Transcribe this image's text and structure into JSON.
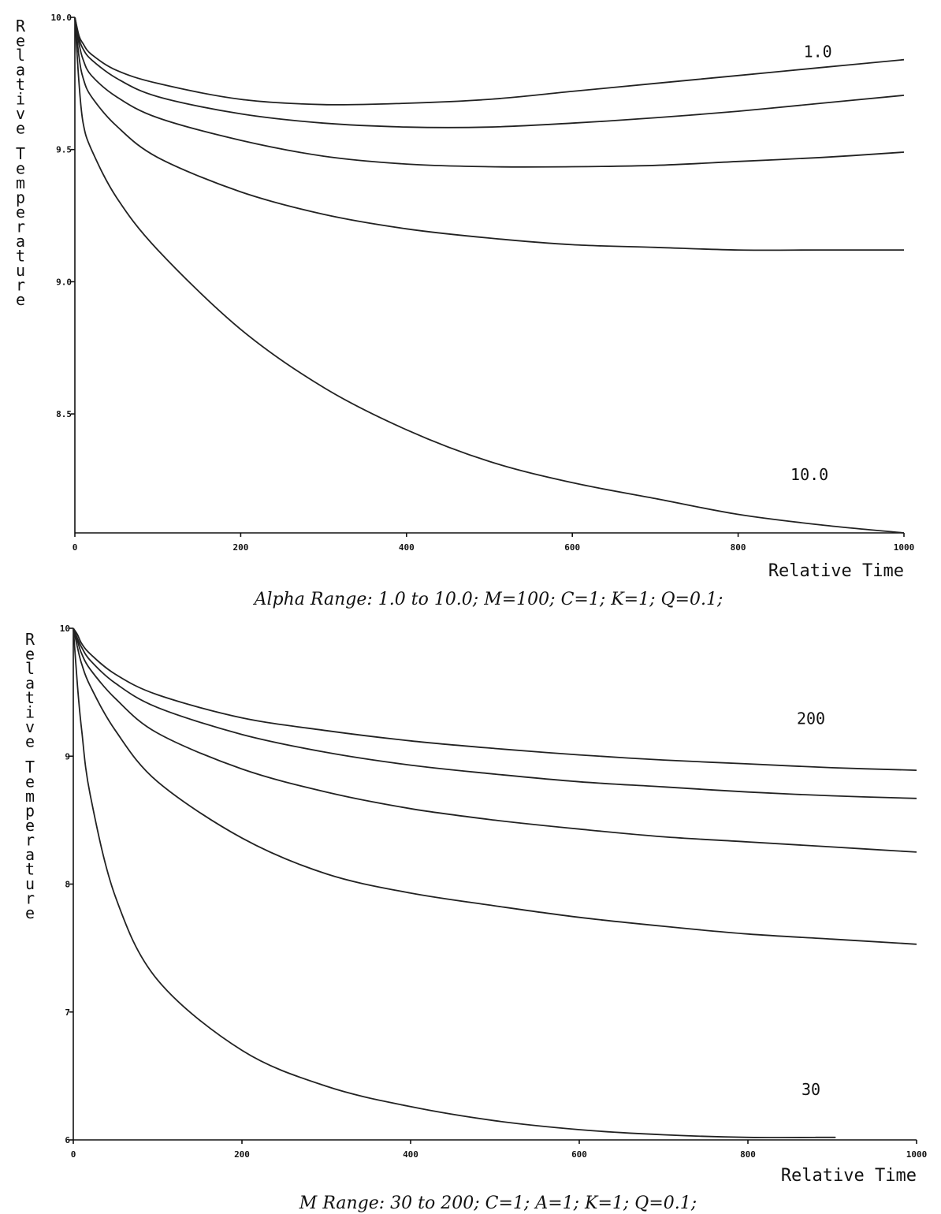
{
  "chart_data": [
    {
      "type": "line",
      "ylabel": "Relative Temperature",
      "xlabel": "Relative Time",
      "caption": "Alpha Range: 1.0 to 10.0;  M=100;  C=1;  K=1;  Q=0.1;",
      "xlim": [
        0,
        1000
      ],
      "ylim": [
        8.05,
        10.0
      ],
      "x_ticks": [
        "0",
        "200",
        "400",
        "600",
        "800",
        "1000"
      ],
      "y_ticks": [
        {
          "value": 10.0,
          "label": "10.0"
        },
        {
          "value": 9.5,
          "label": "9.5"
        },
        {
          "value": 9.0,
          "label": "9.0"
        },
        {
          "value": 8.5,
          "label": "8.5"
        }
      ],
      "annotations": [
        {
          "text": "1.0",
          "x": 820,
          "y": 9.85
        },
        {
          "text": "10.0",
          "x": 810,
          "y": 8.25
        }
      ],
      "grid": false,
      "x": [
        0,
        5,
        10,
        20,
        50,
        100,
        200,
        300,
        400,
        500,
        600,
        700,
        800,
        900,
        1000
      ],
      "series": [
        {
          "values": [
            10.0,
            9.93,
            9.9,
            9.86,
            9.8,
            9.75,
            9.69,
            9.67,
            9.675,
            9.69,
            9.72,
            9.75,
            9.78,
            9.81,
            9.84
          ]
        },
        {
          "values": [
            10.0,
            9.92,
            9.88,
            9.84,
            9.77,
            9.7,
            9.635,
            9.6,
            9.585,
            9.585,
            9.6,
            9.62,
            9.645,
            9.675,
            9.705
          ]
        },
        {
          "values": [
            10.0,
            9.9,
            9.84,
            9.78,
            9.7,
            9.62,
            9.535,
            9.475,
            9.445,
            9.435,
            9.435,
            9.44,
            9.455,
            9.47,
            9.49
          ]
        },
        {
          "values": [
            10.0,
            9.85,
            9.77,
            9.7,
            9.59,
            9.47,
            9.34,
            9.255,
            9.2,
            9.165,
            9.14,
            9.13,
            9.12,
            9.12,
            9.12
          ]
        },
        {
          "values": [
            10.0,
            9.75,
            9.6,
            9.5,
            9.32,
            9.12,
            8.82,
            8.6,
            8.44,
            8.32,
            8.24,
            8.18,
            8.12,
            8.08,
            8.05
          ]
        }
      ]
    },
    {
      "type": "line",
      "ylabel": "Relative Temperature",
      "xlabel": "Relative Time",
      "caption": "M Range: 30 to 200;  C=1;  A=1;  K=1;  Q=0.1;",
      "xlim": [
        0,
        1000
      ],
      "ylim": [
        6.0,
        10.0
      ],
      "x_ticks": [
        "0",
        "200",
        "400",
        "600",
        "800",
        "1000"
      ],
      "y_ticks": [
        {
          "value": 10,
          "label": "10"
        },
        {
          "value": 9,
          "label": "9"
        },
        {
          "value": 8,
          "label": "8"
        },
        {
          "value": 7,
          "label": "7"
        },
        {
          "value": 6,
          "label": "6"
        }
      ],
      "annotations": [
        {
          "text": "200",
          "x": 800,
          "y": 9.25
        },
        {
          "text": "30",
          "x": 800,
          "y": 6.35
        }
      ],
      "grid": false,
      "x": [
        0,
        5,
        10,
        20,
        50,
        100,
        200,
        300,
        400,
        500,
        600,
        700,
        800,
        900,
        1000
      ],
      "series": [
        {
          "values": [
            10.0,
            9.95,
            9.88,
            9.8,
            9.64,
            9.48,
            9.3,
            9.2,
            9.12,
            9.06,
            9.01,
            8.97,
            8.94,
            8.91,
            8.89
          ]
        },
        {
          "values": [
            10.0,
            9.92,
            9.85,
            9.75,
            9.57,
            9.38,
            9.17,
            9.03,
            8.93,
            8.86,
            8.8,
            8.76,
            8.72,
            8.69,
            8.67
          ]
        },
        {
          "values": [
            10.0,
            9.9,
            9.8,
            9.68,
            9.45,
            9.18,
            8.9,
            8.72,
            8.59,
            8.5,
            8.43,
            8.37,
            8.33,
            8.29,
            8.25
          ]
        },
        {
          "values": [
            10.0,
            9.85,
            9.72,
            9.55,
            9.2,
            8.8,
            8.36,
            8.08,
            7.93,
            7.83,
            7.74,
            7.67,
            7.61,
            7.57,
            7.53
          ]
        },
        {
          "values": [
            10.0,
            9.55,
            9.2,
            8.7,
            7.9,
            7.25,
            6.7,
            6.42,
            6.26,
            6.15,
            6.08,
            6.04,
            6.02,
            6.02,
            null
          ]
        }
      ]
    }
  ]
}
